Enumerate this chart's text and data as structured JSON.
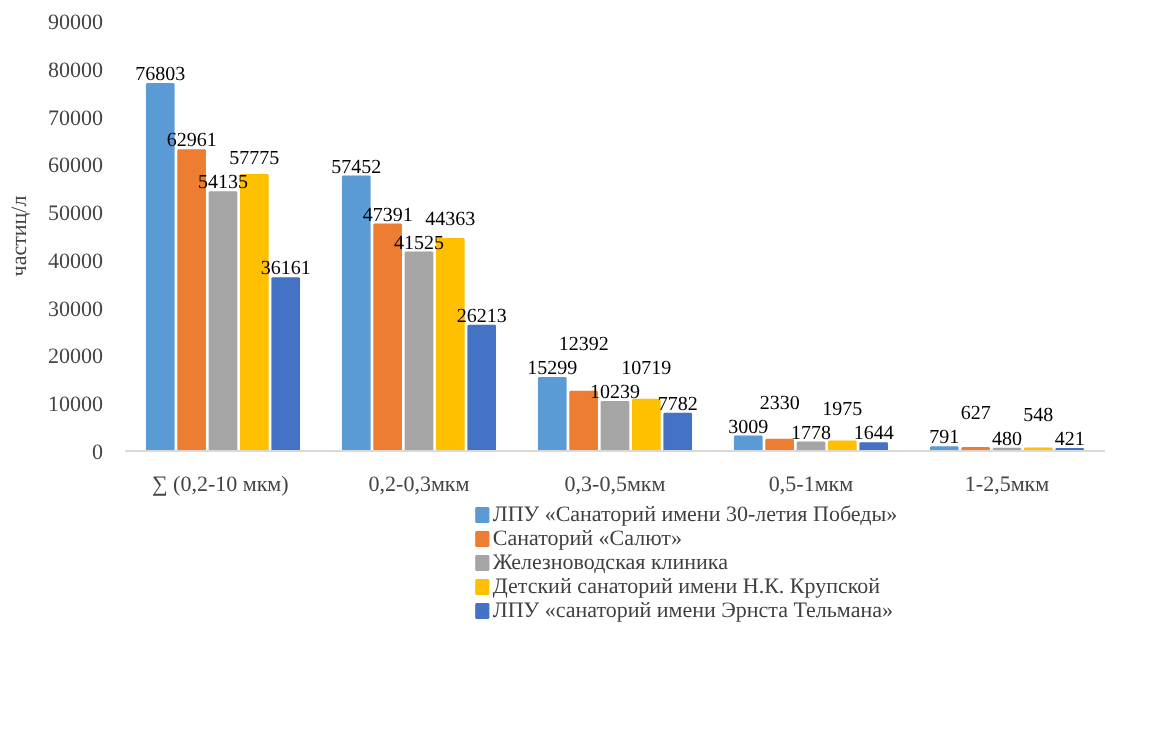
{
  "chart_data": {
    "type": "bar",
    "ylabel": "частиц/л",
    "categories": [
      "∑ (0,2-10  мкм)",
      "0,2-0,3мкм",
      "0,3-0,5мкм",
      "0,5-1мкм",
      "1-2,5мкм"
    ],
    "series": [
      {
        "name": "ЛПУ «Санаторий имени 30-летия  Победы»",
        "color": "#5b9bd5",
        "values": [
          76803,
          57452,
          15299,
          3009,
          791
        ]
      },
      {
        "name": "Санаторий «Салют»",
        "color": "#ed7d31",
        "values": [
          62961,
          47391,
          12392,
          2330,
          627
        ]
      },
      {
        "name": "Железноводская клиника",
        "color": "#a5a5a5",
        "values": [
          54135,
          41525,
          10239,
          1778,
          480
        ]
      },
      {
        "name": "Детский санаторий имени Н.К. Крупской",
        "color": "#ffc000",
        "values": [
          57775,
          44363,
          10719,
          1975,
          548
        ]
      },
      {
        "name": "ЛПУ «санаторий имени Эрнста Тельмана»",
        "color": "#4472c4",
        "values": [
          36161,
          26213,
          7782,
          1644,
          421
        ]
      }
    ],
    "ylim": [
      0,
      90000
    ],
    "yticks": [
      0,
      10000,
      20000,
      30000,
      40000,
      50000,
      60000,
      70000,
      80000,
      90000
    ],
    "data_labels": true,
    "grid": false,
    "legend": "bottom"
  }
}
